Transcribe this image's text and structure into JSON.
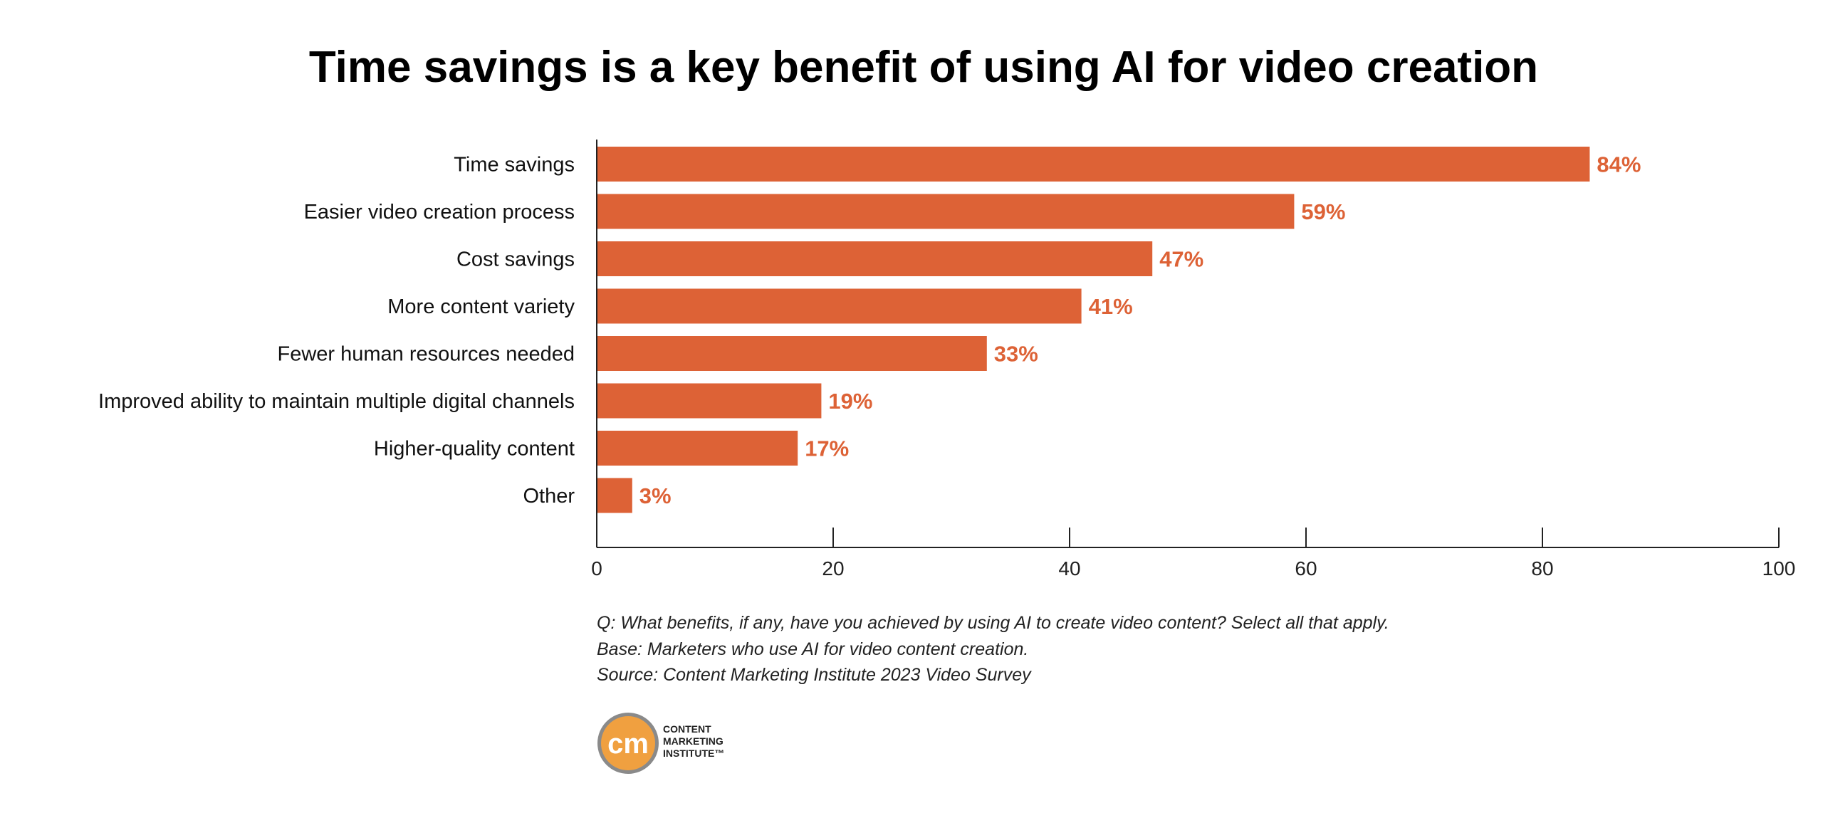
{
  "chart_data": {
    "type": "bar",
    "orientation": "horizontal",
    "title": "Time savings is a key benefit of using AI for video creation",
    "categories": [
      "Time savings",
      "Easier video creation process",
      "Cost savings",
      "More content variety",
      "Fewer human resources needed",
      "Improved ability to maintain multiple digital channels",
      "Higher-quality content",
      "Other"
    ],
    "values": [
      84,
      59,
      47,
      41,
      33,
      19,
      17,
      3
    ],
    "value_labels": [
      "84%",
      "59%",
      "47%",
      "41%",
      "33%",
      "19%",
      "17%",
      "3%"
    ],
    "xlim": [
      0,
      100
    ],
    "xticks": [
      0,
      20,
      40,
      60,
      80,
      100
    ],
    "xlabel": "",
    "ylabel": "",
    "grid": false,
    "bar_color": "#DD6236",
    "label_color": "#DD6236"
  },
  "notes": [
    "Q: What benefits, if any, have you achieved by using AI to create video content? Select all that apply.",
    "Base: Marketers who use AI for video content creation.",
    "Source: Content Marketing Institute 2023 Video Survey"
  ],
  "logo": {
    "mark": "cm",
    "lines": [
      "CONTENT",
      "MARKETING",
      "INSTITUTE™"
    ],
    "color": "#F0A040"
  }
}
